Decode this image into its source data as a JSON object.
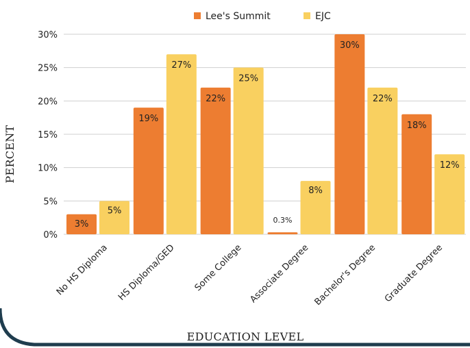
{
  "colors": {
    "lees_summit": "#ED7D31",
    "ejc": "#F9D060",
    "grid": "#CFCFCF",
    "frame_border": "#1F3D4E"
  },
  "chart_data": {
    "type": "bar",
    "title": "",
    "xlabel": "EDUCATION LEVEL",
    "ylabel": "PERCENT",
    "ylim": [
      0,
      30
    ],
    "yticks": [
      "0%",
      "5%",
      "10%",
      "15%",
      "20%",
      "25%",
      "30%"
    ],
    "grid": true,
    "legend_position": "top-center",
    "categories": [
      "No HS Diploma",
      "HS Diploma/GED",
      "Some College",
      "Associate Degree",
      "Bachelor's Degree",
      "Graduate Degree"
    ],
    "series": [
      {
        "name": "Lee's Summit",
        "values": [
          3,
          19,
          22,
          0.3,
          30,
          18
        ],
        "labels": [
          "3%",
          "19%",
          "22%",
          "0.3%",
          "30%",
          "18%"
        ]
      },
      {
        "name": "EJC",
        "values": [
          5,
          27,
          25,
          8,
          22,
          12
        ],
        "labels": [
          "5%",
          "27%",
          "25%",
          "8%",
          "22%",
          "12%"
        ]
      }
    ]
  }
}
